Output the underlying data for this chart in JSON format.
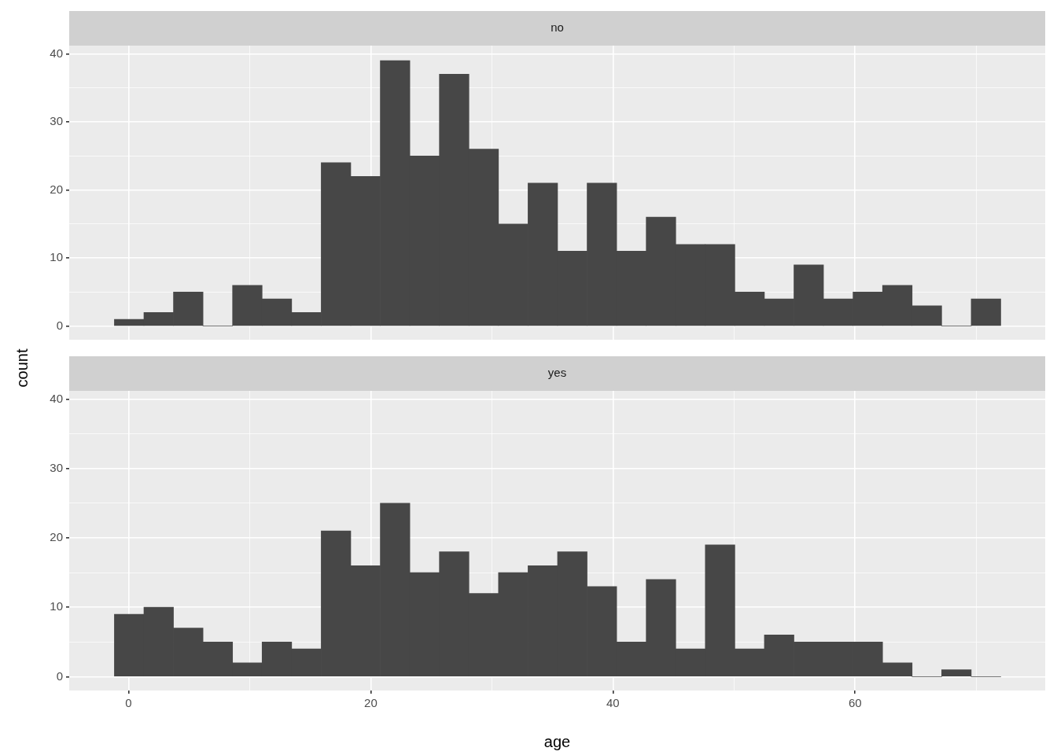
{
  "chart_data": [
    {
      "type": "histogram",
      "title": "no",
      "ylabel": "count",
      "color": "#474747",
      "tick_labels": "y",
      "grid": true,
      "bins": [
        -1.17,
        1.27,
        3.71,
        6.15,
        8.59,
        11.03,
        13.47,
        15.91,
        18.35,
        20.79,
        23.23,
        25.67,
        28.11,
        30.55,
        32.99,
        35.43,
        37.87,
        40.31,
        42.75,
        45.19,
        47.63,
        50.07,
        52.51,
        54.95,
        57.39,
        59.83,
        62.27,
        64.71,
        67.15,
        69.59,
        72.03
      ],
      "values": [
        1,
        2,
        5,
        0,
        6,
        4,
        2,
        24,
        22,
        39,
        25,
        37,
        26,
        15,
        21,
        11,
        21,
        11,
        16,
        12,
        12,
        5,
        4,
        9,
        4,
        5,
        6,
        3,
        0,
        4
      ],
      "xlim": [
        -4.9,
        75.7
      ],
      "ylim": [
        -2,
        41.2
      ],
      "xticks": [
        0,
        {
          "value": 10,
          "label": null
        },
        20,
        {
          "value": 30,
          "label": null
        },
        40,
        {
          "value": 50,
          "label": null
        },
        60,
        {
          "value": 70,
          "label": null
        }
      ],
      "yticks": [
        0,
        {
          "value": 5,
          "label": null
        },
        10,
        {
          "value": 15,
          "label": null
        },
        20,
        {
          "value": 25,
          "label": null
        },
        30,
        {
          "value": 35,
          "label": null
        },
        40
      ]
    },
    {
      "type": "histogram",
      "title": "yes",
      "xlabel": "age",
      "color": "#474747",
      "grid": true,
      "bins": [
        -1.17,
        1.27,
        3.71,
        6.15,
        8.59,
        11.03,
        13.47,
        15.91,
        18.35,
        20.79,
        23.23,
        25.67,
        28.11,
        30.55,
        32.99,
        35.43,
        37.87,
        40.31,
        42.75,
        45.19,
        47.63,
        50.07,
        52.51,
        54.95,
        57.39,
        59.83,
        62.27,
        64.71,
        67.15,
        69.59,
        72.03
      ],
      "values": [
        9,
        10,
        7,
        5,
        2,
        5,
        4,
        21,
        16,
        25,
        15,
        18,
        12,
        15,
        16,
        18,
        13,
        5,
        14,
        4,
        19,
        4,
        6,
        5,
        5,
        5,
        2,
        0,
        1,
        0
      ],
      "xlim": [
        -4.9,
        75.7
      ],
      "ylim": [
        -2,
        41.2
      ],
      "xticks": [
        0,
        {
          "value": 10,
          "label": null
        },
        20,
        {
          "value": 30,
          "label": null
        },
        40,
        {
          "value": 50,
          "label": null
        },
        60,
        {
          "value": 70,
          "label": null
        }
      ],
      "yticks": [
        0,
        {
          "value": 5,
          "label": null
        },
        10,
        {
          "value": 15,
          "label": null
        },
        20,
        {
          "value": 25,
          "label": null
        },
        30,
        {
          "value": 35,
          "label": null
        },
        40
      ]
    }
  ]
}
